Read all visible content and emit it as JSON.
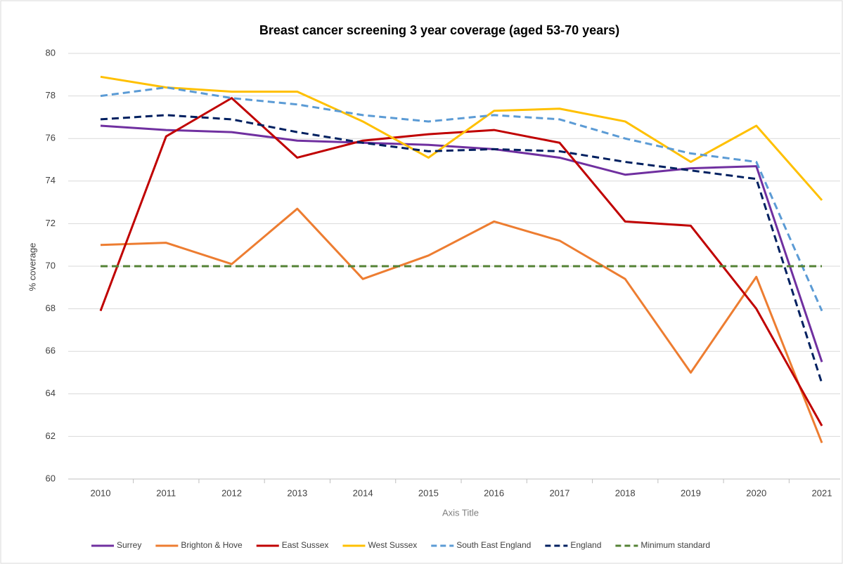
{
  "chart_data": {
    "type": "line",
    "title": "Breast cancer screening 3 year coverage (aged 53-70 years)",
    "x_label": "Axis Title",
    "y_label": "% coverage",
    "categories": [
      "2010",
      "2011",
      "2012",
      "2013",
      "2014",
      "2015",
      "2016",
      "2017",
      "2018",
      "2019",
      "2020",
      "2021"
    ],
    "ylim": [
      60,
      80
    ],
    "yticks": [
      60,
      62,
      64,
      66,
      68,
      70,
      72,
      74,
      76,
      78,
      80
    ],
    "grid": true,
    "legend": "bottom",
    "series": [
      {
        "name": "Surrey",
        "color": "#7030a0",
        "dashed": false,
        "values": [
          76.6,
          76.4,
          76.3,
          75.9,
          75.8,
          75.7,
          75.5,
          75.1,
          74.3,
          74.6,
          74.7,
          65.5
        ]
      },
      {
        "name": "Brighton & Hove",
        "color": "#ed7d31",
        "dashed": false,
        "values": [
          71.0,
          71.1,
          70.1,
          72.7,
          69.4,
          70.5,
          72.1,
          71.2,
          69.4,
          65.0,
          69.5,
          61.7
        ]
      },
      {
        "name": "East Sussex",
        "color": "#c00000",
        "dashed": false,
        "values": [
          67.9,
          76.1,
          77.9,
          75.1,
          75.9,
          76.2,
          76.4,
          75.8,
          72.1,
          71.9,
          68.0,
          62.5
        ]
      },
      {
        "name": "West Sussex",
        "color": "#ffc000",
        "dashed": false,
        "values": [
          78.9,
          78.4,
          78.2,
          78.2,
          76.8,
          75.1,
          77.3,
          77.4,
          76.8,
          74.9,
          76.6,
          73.1
        ]
      },
      {
        "name": "South East England",
        "color": "#5b9bd5",
        "dashed": true,
        "values": [
          78.0,
          78.4,
          77.9,
          77.6,
          77.1,
          76.8,
          77.1,
          76.9,
          76.0,
          75.3,
          74.9,
          67.9
        ]
      },
      {
        "name": "England",
        "color": "#002060",
        "dashed": true,
        "values": [
          76.9,
          77.1,
          76.9,
          76.3,
          75.8,
          75.4,
          75.5,
          75.4,
          74.9,
          74.5,
          74.1,
          64.5
        ]
      },
      {
        "name": "Minimum standard",
        "color": "#548235",
        "dashed": true,
        "values": [
          70,
          70,
          70,
          70,
          70,
          70,
          70,
          70,
          70,
          70,
          70,
          70
        ]
      }
    ]
  }
}
